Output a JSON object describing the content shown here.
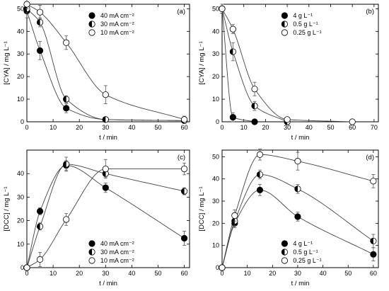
{
  "chart_data": [
    {
      "type": "scatter",
      "panel_label": "(a)",
      "xlabel": "t / min",
      "ylabel": "[CYA] / mg L⁻¹",
      "xlim": [
        0,
        62
      ],
      "ylim": [
        0,
        52
      ],
      "xticks": [
        0,
        10,
        20,
        30,
        40,
        50,
        60
      ],
      "yticks": [
        0,
        10,
        20,
        30,
        40,
        50
      ],
      "legend_position": "top-center",
      "series": [
        {
          "name": "40 mA cm⁻²",
          "marker": "filled",
          "x": [
            0,
            5,
            15,
            30,
            60
          ],
          "y": [
            49,
            31.5,
            6,
            1,
            0.5
          ],
          "err": [
            3,
            4,
            2,
            0.5,
            0.5
          ],
          "curve": "decay"
        },
        {
          "name": "30 mA cm⁻²",
          "marker": "half",
          "x": [
            0,
            5,
            15,
            30,
            60
          ],
          "y": [
            50,
            44,
            10,
            1,
            0.5
          ],
          "err": [
            2,
            2,
            1.5,
            0.5,
            0.5
          ],
          "curve": "decay"
        },
        {
          "name": "10 mA cm⁻²",
          "marker": "open",
          "x": [
            0,
            5,
            15,
            30,
            60
          ],
          "y": [
            52,
            48.5,
            35,
            12,
            1
          ],
          "err": [
            2,
            3,
            3,
            4,
            1.5
          ],
          "curve": "decay"
        }
      ]
    },
    {
      "type": "scatter",
      "panel_label": "(b)",
      "xlabel": "t / min",
      "ylabel": "[CYA] / mg L⁻¹",
      "xlim": [
        0,
        72
      ],
      "ylim": [
        0,
        52
      ],
      "xticks": [
        0,
        10,
        20,
        30,
        40,
        50,
        60,
        70
      ],
      "yticks": [
        0,
        10,
        20,
        30,
        40,
        50
      ],
      "legend_position": "top-center",
      "series": [
        {
          "name": "4 g L⁻¹",
          "marker": "filled",
          "x": [
            0,
            5,
            15
          ],
          "y": [
            50,
            2,
            0
          ],
          "err": [
            2,
            2,
            0.5
          ],
          "curve": "decay"
        },
        {
          "name": "0.5 g L⁻¹",
          "marker": "half",
          "x": [
            0,
            5,
            15,
            30
          ],
          "y": [
            50,
            31,
            7,
            0
          ],
          "err": [
            2,
            4,
            2,
            0.5
          ],
          "curve": "decay"
        },
        {
          "name": "0.25 g L⁻¹",
          "marker": "open",
          "x": [
            0,
            5,
            15,
            30,
            60
          ],
          "y": [
            50,
            41,
            14.5,
            1,
            0
          ],
          "err": [
            2,
            2,
            3,
            1,
            0.5
          ],
          "curve": "decay"
        }
      ]
    },
    {
      "type": "scatter",
      "panel_label": "(c)",
      "xlabel": "t / min",
      "ylabel": "[DCC] / mg L⁻¹",
      "xlim": [
        0,
        62
      ],
      "ylim": [
        0,
        50
      ],
      "xticks": [
        0,
        10,
        20,
        30,
        40,
        50,
        60
      ],
      "yticks": [
        0,
        10,
        20,
        30,
        40
      ],
      "legend_position": "bottom-center",
      "series": [
        {
          "name": "40 mA cm⁻²",
          "marker": "filled",
          "x": [
            0,
            5,
            15,
            30,
            60
          ],
          "y": [
            0,
            24,
            43.5,
            34,
            12.5
          ],
          "err": [
            0,
            1.5,
            2,
            2,
            3
          ],
          "curve": "rise-fall"
        },
        {
          "name": "30 mA cm⁻²",
          "marker": "half",
          "x": [
            0,
            5,
            15,
            30,
            60
          ],
          "y": [
            0,
            17.5,
            44,
            40,
            32.5
          ],
          "err": [
            0,
            1.5,
            3,
            1.5,
            1.5
          ],
          "curve": "rise-fall"
        },
        {
          "name": "10 mA cm⁻²",
          "marker": "open",
          "x": [
            0,
            5,
            15,
            30,
            60
          ],
          "y": [
            0,
            3.5,
            20.5,
            42,
            42
          ],
          "err": [
            0,
            3,
            2.5,
            4,
            2.5
          ],
          "curve": "rise-fall"
        }
      ]
    },
    {
      "type": "scatter",
      "panel_label": "(d)",
      "xlabel": "t / min",
      "ylabel": "[DCC] / mg L⁻¹",
      "xlim": [
        0,
        62
      ],
      "ylim": [
        0,
        53
      ],
      "xticks": [
        0,
        10,
        20,
        30,
        40,
        50,
        60
      ],
      "yticks": [
        0,
        10,
        20,
        30,
        40,
        50
      ],
      "legend_position": "bottom-center",
      "series": [
        {
          "name": "4 g L⁻¹",
          "marker": "filled",
          "x": [
            0,
            5,
            15,
            30,
            60
          ],
          "y": [
            0,
            20,
            35,
            23,
            6
          ],
          "err": [
            0,
            2,
            2.5,
            2,
            3
          ],
          "curve": "rise-fall"
        },
        {
          "name": "0.5 g L⁻¹",
          "marker": "half",
          "x": [
            0,
            5,
            15,
            30,
            60
          ],
          "y": [
            0,
            21,
            42,
            35.5,
            12
          ],
          "err": [
            0,
            2,
            2,
            2,
            3
          ],
          "curve": "rise-fall"
        },
        {
          "name": "0.25 g L⁻¹",
          "marker": "open",
          "x": [
            0,
            5,
            15,
            30,
            60
          ],
          "y": [
            0,
            23.5,
            51,
            48,
            39
          ],
          "err": [
            0,
            2.5,
            2.5,
            4,
            3
          ],
          "curve": "rise-fall"
        }
      ]
    }
  ]
}
